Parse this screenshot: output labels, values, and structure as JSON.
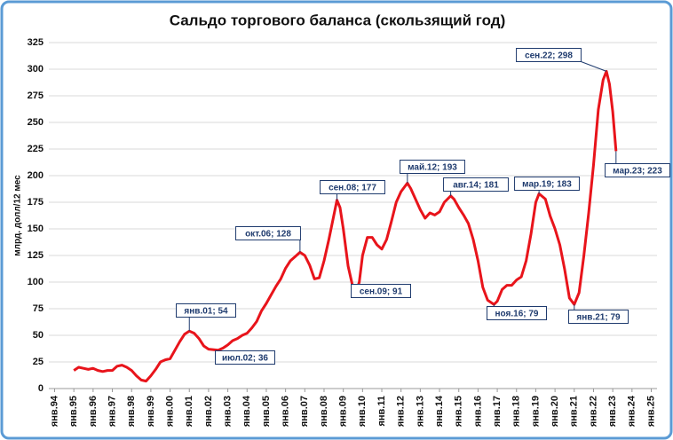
{
  "chart_data": {
    "type": "line",
    "title": "Сальдо торгового баланса (скользящий год)",
    "y_label": "млрд. долл/12 мес",
    "x": [
      1995.0,
      1995.25,
      1995.5,
      1995.75,
      1996.0,
      1996.25,
      1996.5,
      1996.75,
      1997.0,
      1997.25,
      1997.5,
      1997.75,
      1998.0,
      1998.25,
      1998.5,
      1998.75,
      1999.0,
      1999.25,
      1999.5,
      1999.75,
      2000.0,
      2000.25,
      2000.5,
      2000.75,
      2001.0,
      2001.25,
      2001.5,
      2001.75,
      2002.0,
      2002.5,
      2002.75,
      2003.0,
      2003.25,
      2003.5,
      2003.75,
      2004.0,
      2004.25,
      2004.5,
      2004.75,
      2005.0,
      2005.25,
      2005.5,
      2005.75,
      2006.0,
      2006.25,
      2006.5,
      2006.75,
      2007.0,
      2007.25,
      2007.5,
      2007.75,
      2008.0,
      2008.25,
      2008.5,
      2008.67,
      2008.83,
      2009.0,
      2009.25,
      2009.5,
      2009.67,
      2009.83,
      2010.0,
      2010.25,
      2010.5,
      2010.75,
      2011.0,
      2011.25,
      2011.5,
      2011.75,
      2012.0,
      2012.33,
      2012.5,
      2012.75,
      2013.0,
      2013.25,
      2013.5,
      2013.75,
      2014.0,
      2014.25,
      2014.58,
      2014.75,
      2015.0,
      2015.25,
      2015.5,
      2015.75,
      2016.0,
      2016.25,
      2016.5,
      2016.83,
      2017.0,
      2017.25,
      2017.5,
      2017.75,
      2018.0,
      2018.25,
      2018.5,
      2018.75,
      2019.0,
      2019.17,
      2019.5,
      2019.75,
      2020.0,
      2020.25,
      2020.5,
      2020.75,
      2021.0,
      2021.25,
      2021.5,
      2021.75,
      2022.0,
      2022.25,
      2022.5,
      2022.67,
      2022.83,
      2023.0,
      2023.17
    ],
    "series": [
      {
        "name": "Сальдо торгового баланса",
        "color": "#e8141b",
        "values": [
          17,
          20,
          19,
          18,
          19,
          17,
          16,
          17,
          17,
          21,
          22,
          20,
          17,
          12,
          8,
          7,
          12,
          18,
          25,
          27,
          28,
          36,
          44,
          51,
          54,
          52,
          47,
          40,
          37,
          36,
          38,
          41,
          45,
          47,
          50,
          52,
          57,
          63,
          73,
          80,
          88,
          96,
          103,
          113,
          120,
          124,
          128,
          125,
          116,
          103,
          104,
          120,
          140,
          162,
          177,
          170,
          150,
          115,
          95,
          91,
          100,
          125,
          142,
          142,
          135,
          131,
          140,
          157,
          175,
          185,
          193,
          188,
          178,
          168,
          160,
          165,
          163,
          166,
          175,
          181,
          178,
          170,
          163,
          155,
          140,
          120,
          95,
          83,
          79,
          82,
          93,
          97,
          97,
          102,
          105,
          120,
          145,
          175,
          183,
          178,
          162,
          150,
          135,
          112,
          85,
          79,
          90,
          125,
          165,
          210,
          262,
          290,
          298,
          286,
          260,
          223
        ]
      }
    ],
    "annotations": [
      {
        "label": "янв.01; 54",
        "x": 2001.0,
        "y": 54
      },
      {
        "label": "июл.02; 36",
        "x": 2002.5,
        "y": 36
      },
      {
        "label": "окт.06; 128",
        "x": 2006.75,
        "y": 128
      },
      {
        "label": "сен.08; 177",
        "x": 2008.67,
        "y": 177
      },
      {
        "label": "сен.09; 91",
        "x": 2009.67,
        "y": 91
      },
      {
        "label": "май.12; 193",
        "x": 2012.33,
        "y": 193
      },
      {
        "label": "авг.14; 181",
        "x": 2014.58,
        "y": 181
      },
      {
        "label": "ноя.16; 79",
        "x": 2016.83,
        "y": 79
      },
      {
        "label": "мар.19; 183",
        "x": 2019.17,
        "y": 183
      },
      {
        "label": "янв.21; 79",
        "x": 2021.0,
        "y": 79
      },
      {
        "label": "сен.22; 298",
        "x": 2022.67,
        "y": 298
      },
      {
        "label": "мар.23; 223",
        "x": 2023.17,
        "y": 223
      }
    ],
    "xlim": [
      1993.7,
      2025.3
    ],
    "xticks": [
      {
        "value": 1994,
        "label": "янв.94"
      },
      {
        "value": 1995,
        "label": "янв.95"
      },
      {
        "value": 1996,
        "label": "янв.96"
      },
      {
        "value": 1997,
        "label": "янв.97"
      },
      {
        "value": 1998,
        "label": "янв.98"
      },
      {
        "value": 1999,
        "label": "янв.99"
      },
      {
        "value": 2000,
        "label": "янв.00"
      },
      {
        "value": 2001,
        "label": "янв.01"
      },
      {
        "value": 2002,
        "label": "янв.02"
      },
      {
        "value": 2003,
        "label": "янв.03"
      },
      {
        "value": 2004,
        "label": "янв.04"
      },
      {
        "value": 2005,
        "label": "янв.05"
      },
      {
        "value": 2006,
        "label": "янв.06"
      },
      {
        "value": 2007,
        "label": "янв.07"
      },
      {
        "value": 2008,
        "label": "янв.08"
      },
      {
        "value": 2009,
        "label": "янв.09"
      },
      {
        "value": 2010,
        "label": "янв.10"
      },
      {
        "value": 2011,
        "label": "янв.11"
      },
      {
        "value": 2012,
        "label": "янв.12"
      },
      {
        "value": 2013,
        "label": "янв.13"
      },
      {
        "value": 2014,
        "label": "янв.14"
      },
      {
        "value": 2015,
        "label": "янв.15"
      },
      {
        "value": 2016,
        "label": "янв.16"
      },
      {
        "value": 2017,
        "label": "янв.17"
      },
      {
        "value": 2018,
        "label": "янв.18"
      },
      {
        "value": 2019,
        "label": "янв.19"
      },
      {
        "value": 2020,
        "label": "янв.20"
      },
      {
        "value": 2021,
        "label": "янв.21"
      },
      {
        "value": 2022,
        "label": "янв.22"
      },
      {
        "value": 2023,
        "label": "янв.23"
      },
      {
        "value": 2024,
        "label": "янв.24"
      },
      {
        "value": 2025,
        "label": "янв.25"
      }
    ],
    "ylim": [
      0,
      325
    ],
    "yticks": [
      0,
      25,
      50,
      75,
      100,
      125,
      150,
      175,
      200,
      225,
      250,
      275,
      300,
      325
    ],
    "grid": true
  }
}
